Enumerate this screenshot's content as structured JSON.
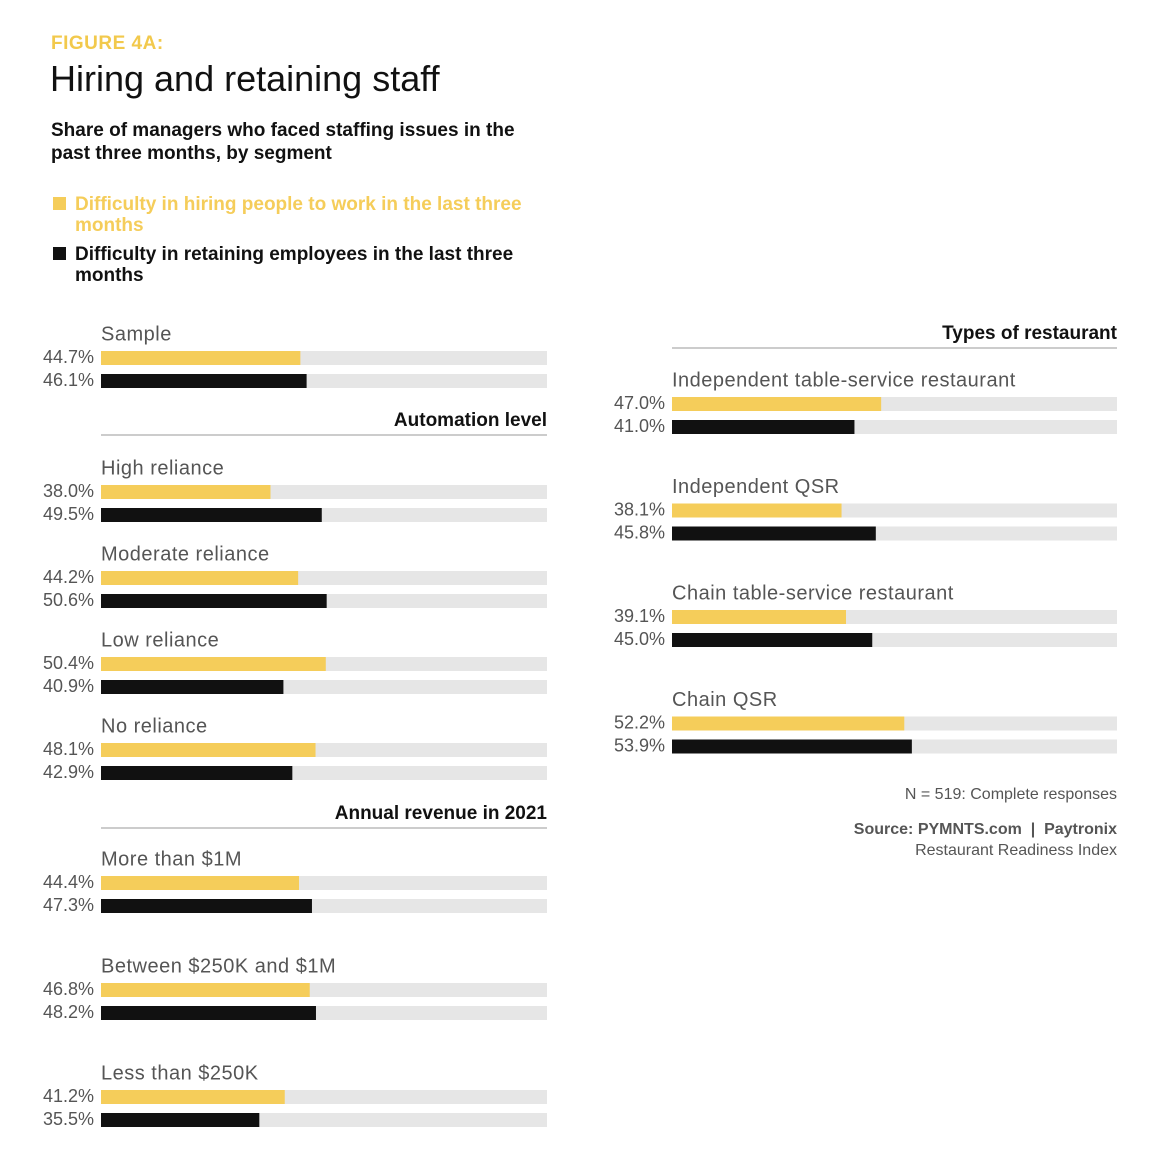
{
  "header": {
    "kicker": "FIGURE 4A:",
    "title": "Hiring and retaining staff",
    "subtitle": "Share of managers who faced staffing issues in the past three months, by segment"
  },
  "footer": {
    "note": "N = 519: Complete responses",
    "source": "Source: PYMNTS.com  |  Paytronix",
    "source_detail": "Restaurant Readiness Index"
  },
  "chart_data": [
    {
      "type": "bar",
      "orientation": "horizontal",
      "xlim": [
        0,
        100
      ],
      "categories": [
        "Sample"
      ],
      "series": [
        {
          "name": "Difficulty in hiring people to work in the last three months",
          "color": "#f5cd5a",
          "values": [
            44.7
          ],
          "value_labels": [
            "44.7%"
          ]
        },
        {
          "name": "Difficulty in retaining employees in the last three months",
          "color": "#111111",
          "values": [
            46.1
          ],
          "value_labels": [
            "46.1%"
          ]
        }
      ]
    },
    {
      "type": "bar",
      "orientation": "horizontal",
      "title": "Automation level",
      "xlim": [
        0,
        100
      ],
      "categories": [
        "High reliance",
        "Moderate reliance",
        "Low reliance",
        "No reliance"
      ],
      "series": [
        {
          "name": "Difficulty in hiring people to work in the last three months",
          "color": "#f5cd5a",
          "values": [
            38.0,
            44.2,
            50.4,
            48.1
          ],
          "value_labels": [
            "38.0%",
            "44.2%",
            "50.4%",
            "48.1%"
          ]
        },
        {
          "name": "Difficulty in retaining employees in the last three months",
          "color": "#111111",
          "values": [
            49.5,
            50.6,
            40.9,
            42.9
          ],
          "value_labels": [
            "49.5%",
            "50.6%",
            "40.9%",
            "42.9%"
          ]
        }
      ]
    },
    {
      "type": "bar",
      "orientation": "horizontal",
      "title": "Annual revenue in 2021",
      "xlim": [
        0,
        100
      ],
      "categories": [
        "More than $1M",
        "Between $250K and $1M",
        "Less than $250K"
      ],
      "series": [
        {
          "name": "Difficulty in hiring people to work in the last three months",
          "color": "#f5cd5a",
          "values": [
            44.4,
            46.8,
            41.2
          ],
          "value_labels": [
            "44.4%",
            "46.8%",
            "41.2%"
          ]
        },
        {
          "name": "Difficulty in retaining employees in the last three months",
          "color": "#111111",
          "values": [
            47.3,
            48.2,
            35.5
          ],
          "value_labels": [
            "47.3%",
            "48.2%",
            "35.5%"
          ]
        }
      ]
    },
    {
      "type": "bar",
      "orientation": "horizontal",
      "title": "Types of restaurant",
      "xlim": [
        0,
        100
      ],
      "categories": [
        "Independent table-service restaurant",
        "Independent QSR",
        "Chain table-service restaurant",
        "Chain QSR"
      ],
      "series": [
        {
          "name": "Difficulty in hiring people to work in the last three months",
          "color": "#f5cd5a",
          "values": [
            47.0,
            38.1,
            39.1,
            52.2
          ],
          "value_labels": [
            "47.0%",
            "38.1%",
            "39.1%",
            "52.2%"
          ]
        },
        {
          "name": "Difficulty in retaining employees in the last three months",
          "color": "#111111",
          "values": [
            41.0,
            45.8,
            45.0,
            53.9
          ],
          "value_labels": [
            "41.0%",
            "45.8%",
            "45.0%",
            "53.9%"
          ]
        }
      ]
    }
  ]
}
